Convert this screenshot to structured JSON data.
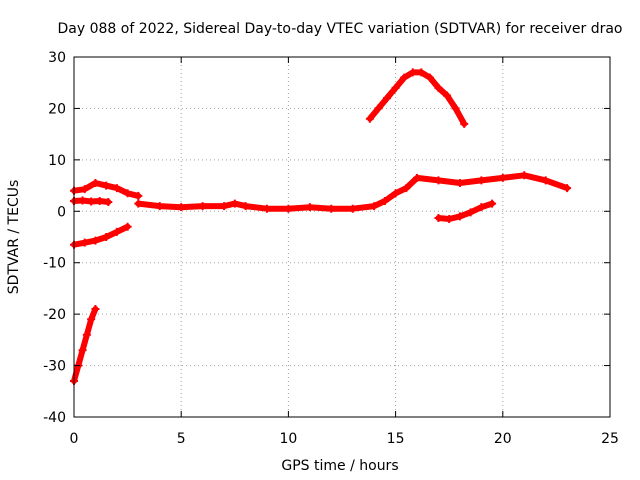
{
  "chart_data": {
    "type": "scatter",
    "title": "Day 088 of 2022, Sidereal Day-to-day VTEC variation (SDTVAR) for receiver drao",
    "xlabel": "GPS time / hours",
    "ylabel": "SDTVAR / TECUs",
    "xlim": [
      0,
      25
    ],
    "ylim": [
      -40,
      30
    ],
    "xticks": [
      0,
      5,
      10,
      15,
      20,
      25
    ],
    "yticks": [
      -40,
      -30,
      -20,
      -10,
      0,
      10,
      20,
      30
    ],
    "grid": true,
    "series_color": "#ff0000",
    "grid_color": "#a0a0a0",
    "series": [
      {
        "name": "steep-drop",
        "x": [
          0.0,
          0.2,
          0.4,
          0.6,
          0.8,
          1.0
        ],
        "y": [
          -33,
          -30,
          -27,
          -24,
          -21,
          -19
        ]
      },
      {
        "name": "negative-rise",
        "x": [
          0.0,
          0.5,
          1.0,
          1.5,
          2.0,
          2.5
        ],
        "y": [
          -6.5,
          -6.1,
          -5.7,
          -5.0,
          -4.0,
          -3.0
        ]
      },
      {
        "name": "early-flat",
        "x": [
          0.0,
          0.4,
          0.8,
          1.2,
          1.6
        ],
        "y": [
          2.0,
          2.1,
          1.9,
          2.0,
          1.8
        ]
      },
      {
        "name": "early-upper",
        "x": [
          0.0,
          0.5,
          1.0,
          1.5,
          2.0,
          2.5,
          3.0
        ],
        "y": [
          4.0,
          4.3,
          5.5,
          5.0,
          4.5,
          3.5,
          3.0
        ]
      },
      {
        "name": "main-trend",
        "x": [
          3.0,
          4.0,
          5.0,
          6.0,
          7.0,
          7.5,
          8.0,
          9.0,
          10.0,
          11.0,
          12.0,
          13.0,
          14.0,
          14.5,
          15.0,
          15.5,
          16.0,
          17.0,
          18.0,
          19.0,
          20.0,
          21.0,
          22.0,
          23.0
        ],
        "y": [
          1.5,
          1.0,
          0.8,
          1.0,
          1.0,
          1.5,
          1.0,
          0.5,
          0.5,
          0.8,
          0.5,
          0.5,
          1.0,
          2.0,
          3.5,
          4.5,
          6.5,
          6.0,
          5.5,
          6.0,
          6.5,
          7.0,
          6.0,
          4.5
        ]
      },
      {
        "name": "hump",
        "x": [
          13.8,
          14.2,
          14.6,
          15.0,
          15.4,
          15.8,
          16.2,
          16.6,
          17.0,
          17.4,
          17.8,
          18.2
        ],
        "y": [
          18,
          20,
          22,
          24,
          26,
          27,
          27,
          26,
          24,
          22.5,
          20,
          17
        ]
      },
      {
        "name": "late-rise",
        "x": [
          17.0,
          17.5,
          18.0,
          18.5,
          19.0,
          19.5
        ],
        "y": [
          -1.3,
          -1.5,
          -1.0,
          -0.2,
          0.8,
          1.5
        ]
      }
    ]
  }
}
